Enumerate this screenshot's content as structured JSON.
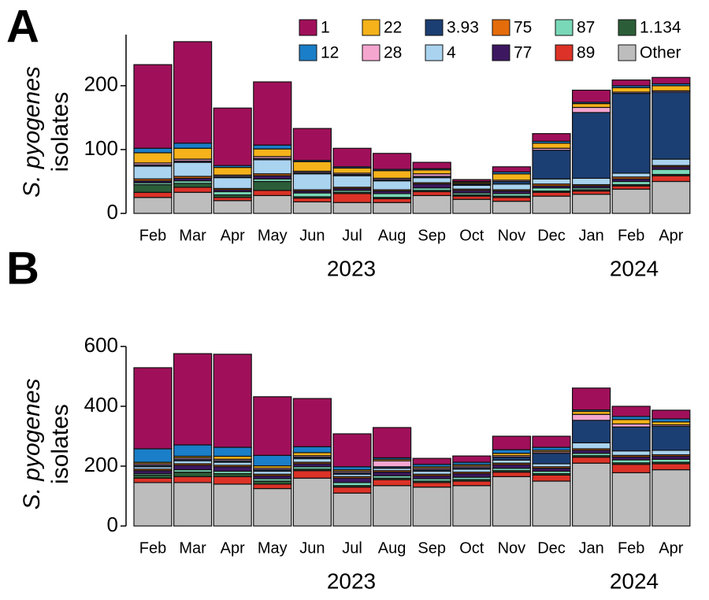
{
  "chart_data": [
    {
      "type": "bar",
      "stacked": true,
      "title": "A",
      "ylabel": [
        "S. pyogenes",
        "isolates"
      ],
      "categories": [
        "Feb",
        "Mar",
        "Apr",
        "May",
        "Jun",
        "Jul",
        "Aug",
        "Sep",
        "Oct",
        "Nov",
        "Dec",
        "Jan",
        "Feb",
        "Apr"
      ],
      "year_labels": [
        "2023",
        "2024"
      ],
      "ylim": [
        0,
        280
      ],
      "yticks": [
        0,
        100,
        200
      ],
      "legend": "top-right",
      "series": [
        {
          "name": "Other",
          "color": "#bdbdbd",
          "values": [
            25,
            33,
            20,
            28,
            18,
            17,
            17,
            28,
            22,
            19,
            27,
            30,
            38,
            50
          ]
        },
        {
          "name": "89",
          "color": "#dc3227",
          "values": [
            8,
            8,
            5,
            8,
            6,
            14,
            6,
            6,
            5,
            6,
            6,
            5,
            5,
            9
          ]
        },
        {
          "name": "1.134",
          "color": "#2b5e38",
          "values": [
            12,
            6,
            4,
            14,
            2,
            2,
            2,
            2,
            2,
            2,
            2,
            2,
            2,
            2
          ]
        },
        {
          "name": "87",
          "color": "#79d8b8",
          "values": [
            3,
            4,
            5,
            4,
            6,
            3,
            6,
            4,
            3,
            4,
            5,
            3,
            5,
            8
          ]
        },
        {
          "name": "77",
          "color": "#3d1760",
          "values": [
            3,
            4,
            3,
            5,
            3,
            3,
            4,
            6,
            4,
            4,
            3,
            3,
            4,
            4
          ]
        },
        {
          "name": "75",
          "color": "#e46c0a",
          "values": [
            3,
            3,
            2,
            3,
            2,
            2,
            2,
            2,
            2,
            2,
            3,
            2,
            3,
            2
          ]
        },
        {
          "name": "4",
          "color": "#a9d3ef",
          "values": [
            20,
            22,
            17,
            22,
            25,
            18,
            14,
            8,
            6,
            9,
            8,
            10,
            6,
            10
          ]
        },
        {
          "name": "3.93",
          "color": "#1c3f73",
          "values": [
            2,
            2,
            2,
            2,
            2,
            2,
            2,
            2,
            2,
            4,
            45,
            103,
            125,
            105
          ]
        },
        {
          "name": "28",
          "color": "#f5a6cf",
          "values": [
            3,
            3,
            2,
            3,
            2,
            2,
            2,
            4,
            1,
            2,
            3,
            8,
            2,
            2
          ]
        },
        {
          "name": "22",
          "color": "#f5b21a",
          "values": [
            16,
            17,
            12,
            12,
            15,
            8,
            12,
            6,
            2,
            10,
            8,
            6,
            7,
            8
          ]
        },
        {
          "name": "12",
          "color": "#1a7ec8",
          "values": [
            7,
            8,
            3,
            6,
            2,
            2,
            2,
            2,
            1,
            3,
            3,
            2,
            3,
            3
          ]
        },
        {
          "name": "1",
          "color": "#a0105a",
          "values": [
            131,
            159,
            90,
            99,
            50,
            29,
            25,
            10,
            3,
            8,
            12,
            19,
            9,
            10
          ]
        }
      ]
    },
    {
      "type": "bar",
      "stacked": true,
      "title": "B",
      "ylabel": [
        "S. pyogenes",
        "isolates"
      ],
      "categories": [
        "Feb",
        "Mar",
        "Apr",
        "May",
        "Jun",
        "Jul",
        "Aug",
        "Sep",
        "Oct",
        "Nov",
        "Dec",
        "Jan",
        "Feb",
        "Apr"
      ],
      "year_labels": [
        "2023",
        "2024"
      ],
      "ylim": [
        0,
        600
      ],
      "yticks": [
        0,
        200,
        400,
        600
      ],
      "series": [
        {
          "color": "#bdbdbd",
          "values": [
            145,
            145,
            140,
            125,
            160,
            110,
            135,
            130,
            135,
            165,
            150,
            210,
            178,
            188
          ]
        },
        {
          "color": "#dc3227",
          "values": [
            15,
            20,
            25,
            15,
            25,
            20,
            20,
            15,
            15,
            15,
            20,
            20,
            28,
            20
          ]
        },
        {
          "color": "#2b5e38",
          "values": [
            10,
            15,
            10,
            10,
            5,
            5,
            5,
            5,
            5,
            5,
            5,
            5,
            5,
            5
          ]
        },
        {
          "color": "#79d8b8",
          "values": [
            5,
            8,
            8,
            8,
            8,
            10,
            8,
            8,
            8,
            8,
            8,
            8,
            10,
            10
          ]
        },
        {
          "color": "#3d1760",
          "values": [
            10,
            15,
            15,
            10,
            10,
            15,
            12,
            10,
            12,
            12,
            10,
            10,
            10,
            10
          ]
        },
        {
          "color": "#e46c0a",
          "values": [
            5,
            5,
            5,
            5,
            5,
            5,
            5,
            5,
            5,
            5,
            5,
            5,
            5,
            5
          ]
        },
        {
          "color": "#a9d3ef",
          "values": [
            8,
            10,
            10,
            10,
            12,
            8,
            8,
            10,
            10,
            10,
            10,
            20,
            15,
            15
          ]
        },
        {
          "color": "#1c3f73",
          "values": [
            5,
            5,
            5,
            5,
            5,
            5,
            5,
            5,
            5,
            10,
            35,
            75,
            80,
            80
          ]
        },
        {
          "color": "#f5a6cf",
          "values": [
            5,
            5,
            5,
            5,
            5,
            5,
            20,
            5,
            5,
            5,
            5,
            20,
            10,
            5
          ]
        },
        {
          "color": "#f5b21a",
          "values": [
            5,
            5,
            10,
            8,
            10,
            5,
            5,
            5,
            5,
            8,
            5,
            10,
            15,
            10
          ]
        },
        {
          "color": "#1a7ec8",
          "values": [
            45,
            38,
            30,
            35,
            20,
            10,
            5,
            8,
            8,
            12,
            10,
            5,
            10,
            10
          ]
        },
        {
          "color": "#a0105a",
          "values": [
            271,
            305,
            311,
            196,
            161,
            110,
            101,
            20,
            21,
            45,
            37,
            73,
            34,
            29
          ]
        }
      ]
    }
  ]
}
